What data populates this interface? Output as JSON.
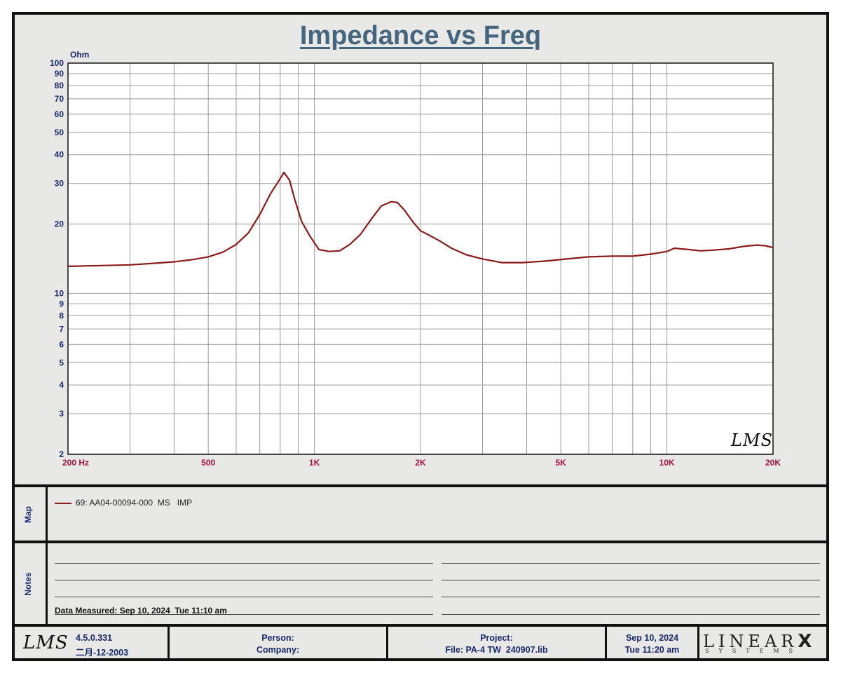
{
  "chart_data": {
    "type": "line",
    "title": "Impedance vs Freq",
    "ylabel": "Ohm",
    "x_scale": "log",
    "y_scale": "log",
    "xlim": [
      200,
      20000
    ],
    "ylim": [
      2,
      100
    ],
    "x_ticks": [
      {
        "value": 200,
        "label": "200  Hz"
      },
      {
        "value": 500,
        "label": "500"
      },
      {
        "value": 1000,
        "label": "1K"
      },
      {
        "value": 2000,
        "label": "2K"
      },
      {
        "value": 5000,
        "label": "5K"
      },
      {
        "value": 10000,
        "label": "10K"
      },
      {
        "value": 20000,
        "label": "20K"
      }
    ],
    "y_ticks": [
      {
        "value": 100,
        "label": "100"
      },
      {
        "value": 90,
        "label": "90"
      },
      {
        "value": 80,
        "label": "80"
      },
      {
        "value": 70,
        "label": "70"
      },
      {
        "value": 60,
        "label": "60"
      },
      {
        "value": 50,
        "label": "50"
      },
      {
        "value": 40,
        "label": "40"
      },
      {
        "value": 30,
        "label": "30"
      },
      {
        "value": 20,
        "label": "20"
      },
      {
        "value": 10,
        "label": "10"
      },
      {
        "value": 9,
        "label": "9"
      },
      {
        "value": 8,
        "label": "8"
      },
      {
        "value": 7,
        "label": "7"
      },
      {
        "value": 6,
        "label": "6"
      },
      {
        "value": 5,
        "label": "5"
      },
      {
        "value": 4,
        "label": "4"
      },
      {
        "value": 3,
        "label": "3"
      },
      {
        "value": 2,
        "label": "2"
      }
    ],
    "grid": true,
    "watermark": "LMS",
    "series": [
      {
        "name": "69: AA04-00094-000  MS   IMP",
        "color": "#8b1a1a",
        "x": [
          200,
          250,
          300,
          350,
          400,
          450,
          500,
          550,
          600,
          650,
          700,
          750,
          800,
          820,
          850,
          880,
          920,
          970,
          1030,
          1100,
          1180,
          1260,
          1350,
          1450,
          1550,
          1650,
          1720,
          1800,
          1900,
          2000,
          2100,
          2250,
          2450,
          2700,
          3000,
          3400,
          3900,
          4500,
          5200,
          6000,
          7000,
          8000,
          9000,
          10000,
          10500,
          11500,
          12500,
          13500,
          15000,
          16500,
          18000,
          19000,
          20000
        ],
        "y": [
          13.1,
          13.2,
          13.3,
          13.5,
          13.7,
          14.0,
          14.4,
          15.1,
          16.3,
          18.3,
          22.0,
          27.0,
          31.5,
          33.5,
          31.0,
          25.5,
          20.5,
          17.8,
          15.5,
          15.2,
          15.3,
          16.3,
          18.0,
          21.0,
          24.0,
          25.0,
          24.8,
          23.0,
          20.5,
          18.7,
          18.0,
          17.0,
          15.7,
          14.7,
          14.1,
          13.6,
          13.6,
          13.8,
          14.1,
          14.4,
          14.5,
          14.5,
          14.8,
          15.2,
          15.7,
          15.5,
          15.3,
          15.4,
          15.6,
          16.0,
          16.2,
          16.1,
          15.8
        ]
      }
    ]
  },
  "map": {
    "label": "Map",
    "entries": [
      {
        "text": "69: AA04-00094-000  MS   IMP",
        "color": "#8b1a1a"
      }
    ]
  },
  "notes": {
    "label": "Notes",
    "data_measured": "Data Measured: Sep 10, 2024  Tue 11:10 am"
  },
  "footer": {
    "logo": "LMS",
    "version": "4.5.0.331",
    "build_date": "二月-12-2003",
    "person_label": "Person:",
    "company_label": "Company:",
    "project_label": "Project:",
    "file_label": "File: PA-4 TW  240907.lib",
    "date": "Sep 10, 2024",
    "time": "Tue 11:20 am",
    "brand": "LINEAR",
    "brand_x": "X",
    "brand_sub": "SYSTEMS"
  }
}
